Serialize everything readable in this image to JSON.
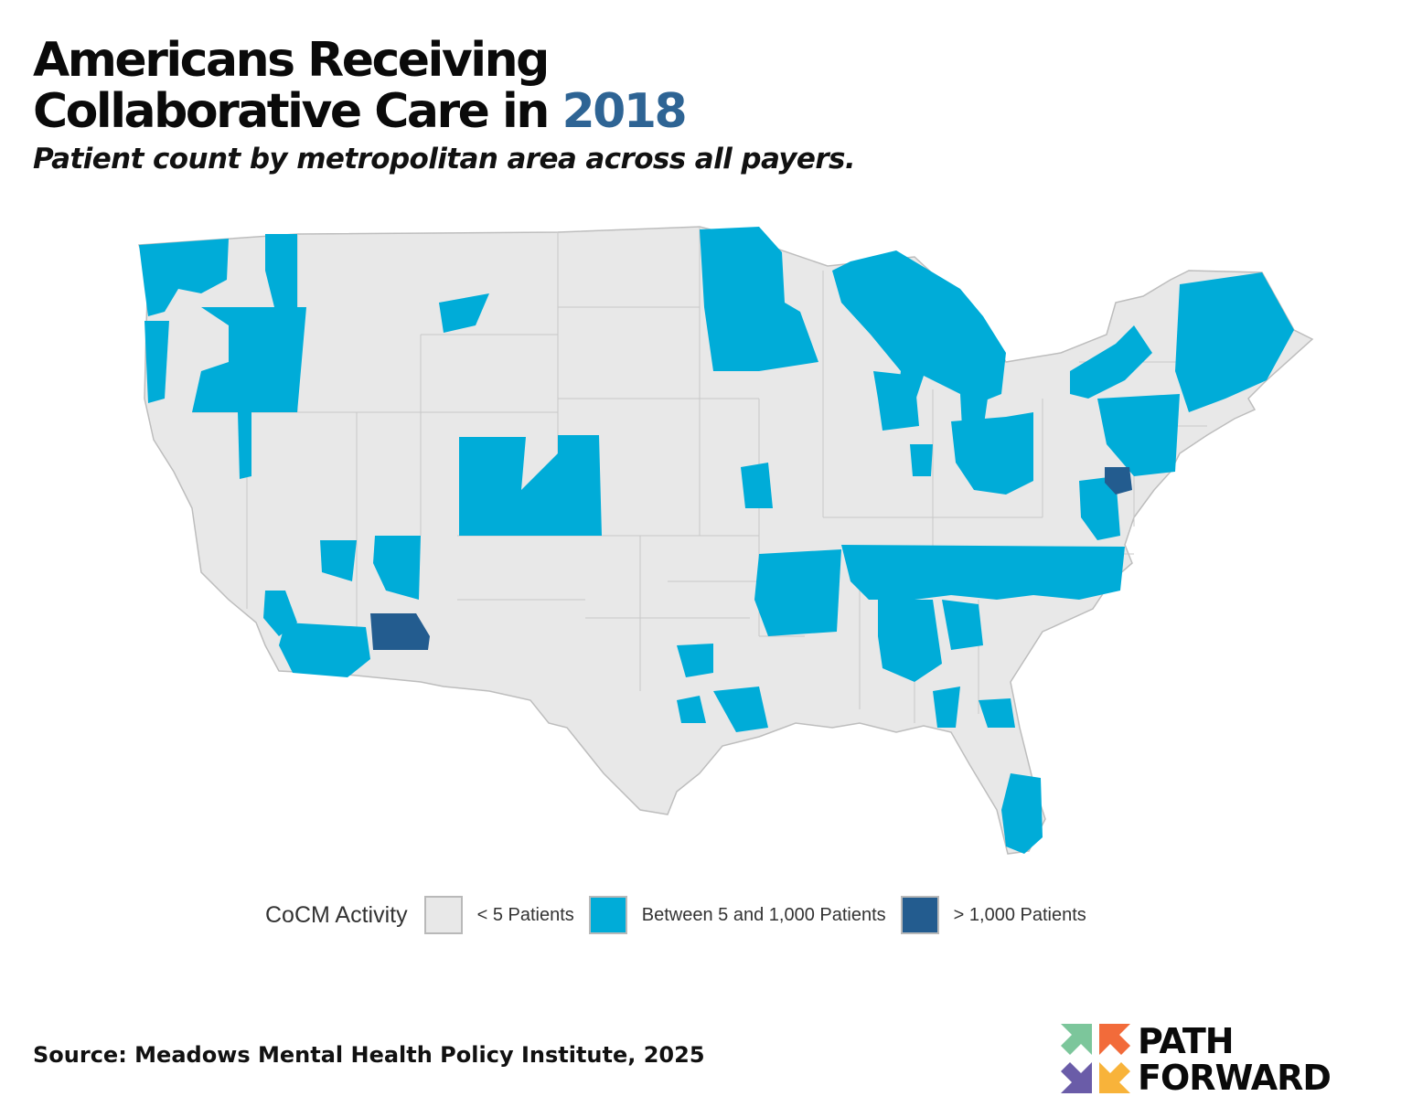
{
  "header": {
    "title_line1": "Americans Receiving",
    "title_line2_prefix": "Collaborative Care in ",
    "title_year": "2018",
    "subtitle": "Patient count by metropolitan area across all payers."
  },
  "colors": {
    "title_year": "#2e6494",
    "low_fill": "#e8e8e8",
    "mid_fill": "#00acd8",
    "high_fill": "#235c8f",
    "boundary": "#bdbdbd"
  },
  "legend": {
    "title": "CoCM Activity",
    "items": [
      {
        "label": "< 5 Patients",
        "color": "#e8e8e8"
      },
      {
        "label": "Between 5 and 1,000 Patients",
        "color": "#00acd8"
      },
      {
        "label": "> 1,000 Patients",
        "color": "#235c8f"
      }
    ]
  },
  "map": {
    "type": "choropleth",
    "region": "Contiguous United States metropolitan areas",
    "regions_highlighted_mid": [
      "Washington",
      "Northern Idaho",
      "Oregon coast",
      "Colorado Front Range",
      "Minnesota",
      "Michigan",
      "Ohio",
      "Tennessee / North Carolina belt",
      "Arkansas",
      "Georgia",
      "Florida",
      "New England",
      "Northeast corridor"
    ],
    "regions_highlighted_high": [
      "Phoenix, AZ",
      "Baltimore-Washington area"
    ]
  },
  "footer": {
    "source": "Source: Meadows Mental Health Policy Institute, 2025"
  },
  "logo": {
    "word1": "PATH",
    "word2": "FORWARD",
    "icon_colors": [
      "#7cc69b",
      "#f26b3a",
      "#6a5ca8",
      "#f8b33a"
    ]
  }
}
